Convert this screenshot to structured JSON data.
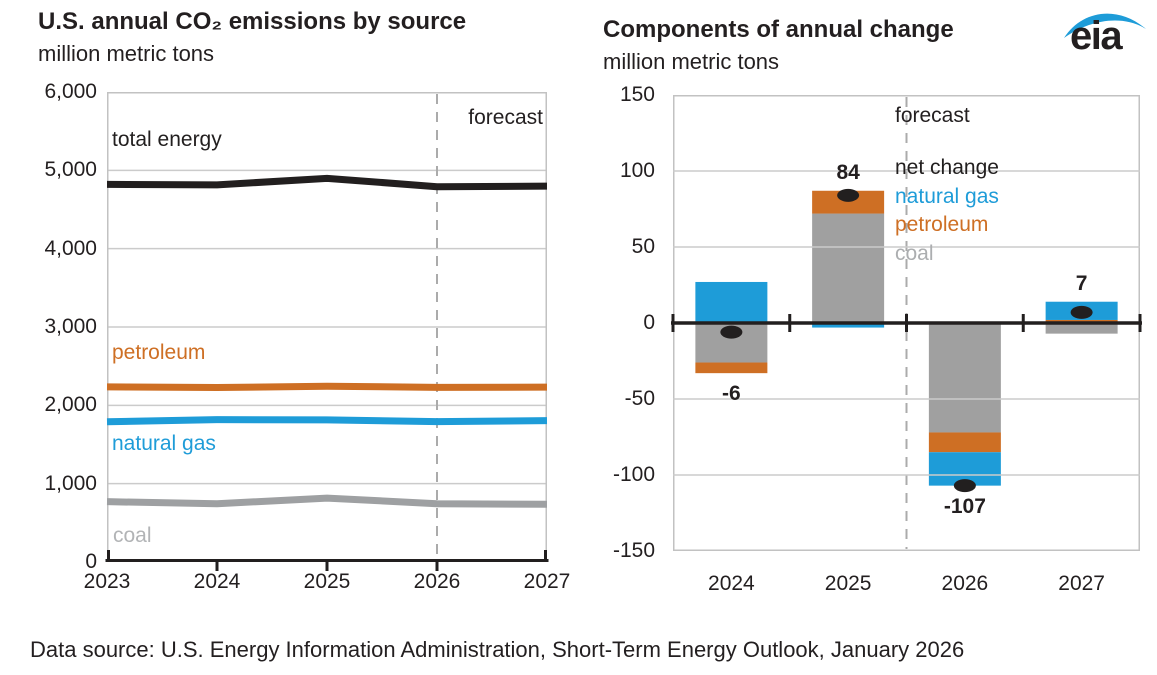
{
  "logo": {
    "text": "eia"
  },
  "footer": "Data source: U.S. Energy Information Administration, Short-Term Energy Outlook, January 2026",
  "colors": {
    "grid": "#CBCBCB",
    "border": "#C2C2C2",
    "dashed": "#ABABAB",
    "axis": "#221F1F",
    "text": "#231F20",
    "logo_blue": "#1E9CD8"
  },
  "chart_data": [
    {
      "type": "line",
      "title": "U.S. annual CO₂ emissions by source",
      "subtitle": "million metric tons",
      "x": [
        2023,
        2024,
        2025,
        2026,
        2027
      ],
      "xticks": [
        "2023",
        "2024",
        "2025",
        "2026",
        "2027"
      ],
      "yticks": [
        "6,000",
        "5,000",
        "4,000",
        "3,000",
        "2,000",
        "1,000",
        "0"
      ],
      "ylim": [
        0,
        6000
      ],
      "ytick_step": 1000,
      "grid": true,
      "forecast_label": "forecast",
      "forecast_starts_at_x": 2026,
      "series": [
        {
          "name": "total energy",
          "color": "#221F1F",
          "label_color": "#221F1F",
          "values": [
            4820,
            4814,
            4898,
            4791,
            4798
          ]
        },
        {
          "name": "petroleum",
          "color": "#CE6F24",
          "label_color": "#CE6F24",
          "values": [
            2235,
            2228,
            2243,
            2230,
            2232
          ]
        },
        {
          "name": "natural gas",
          "color": "#1E9CD8",
          "label_color": "#1E9CD8",
          "values": [
            1790,
            1817,
            1814,
            1792,
            1804
          ]
        },
        {
          "name": "coal",
          "color": "#9EA0A2",
          "label_color": "#B2B4B6",
          "values": [
            770,
            744,
            816,
            744,
            737
          ]
        }
      ]
    },
    {
      "type": "bar",
      "title": "Components of annual change",
      "subtitle": "million metric tons",
      "categories": [
        "2024",
        "2025",
        "2026",
        "2027"
      ],
      "ylim": [
        -150,
        150
      ],
      "ytick_step": 50,
      "yticks": [
        "150",
        "100",
        "50",
        "0",
        "-50",
        "-100",
        "-150"
      ],
      "grid": true,
      "forecast_label": "forecast",
      "forecast_starts_after": "2025",
      "stack_order": [
        "coal",
        "petroleum",
        "natural gas"
      ],
      "series": [
        {
          "name": "natural gas",
          "color": "#1E9CD8",
          "values": [
            27,
            -3,
            -22,
            12
          ]
        },
        {
          "name": "petroleum",
          "color": "#CE6F24",
          "values": [
            -7,
            15,
            -13,
            2
          ]
        },
        {
          "name": "coal",
          "color": "#A0A0A0",
          "values": [
            -26,
            72,
            -72,
            -7
          ]
        }
      ],
      "net_change": {
        "name": "net change",
        "color": "#221F1F",
        "values": [
          -6,
          84,
          -107,
          7
        ]
      },
      "net_labels": [
        "-6",
        "84",
        "-107",
        "7"
      ],
      "legend": [
        {
          "label": "net change",
          "color": "#221F1F"
        },
        {
          "label": "natural gas",
          "color": "#1E9CD8"
        },
        {
          "label": "petroleum",
          "color": "#CE6F24"
        },
        {
          "label": "coal",
          "color": "#ACAEB0"
        }
      ]
    }
  ]
}
